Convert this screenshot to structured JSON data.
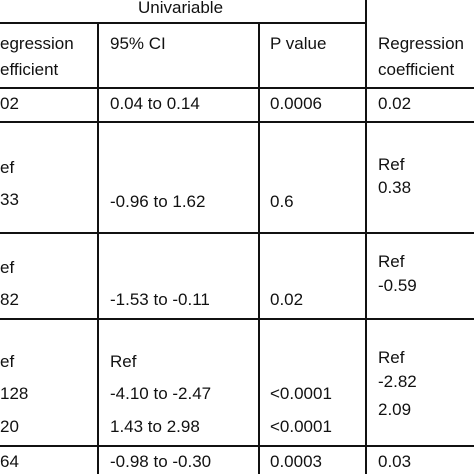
{
  "table": {
    "group_header": "Univariable",
    "header": [
      [
        "egression",
        "efficient"
      ],
      [
        "95% CI"
      ],
      [
        "P value"
      ],
      [
        "Regression",
        "coefficient"
      ]
    ],
    "rows": [
      [
        [
          "02"
        ],
        [
          "0.04 to 0.14"
        ],
        [
          "0.0006"
        ],
        [
          "0.02"
        ]
      ],
      [
        [
          "ef",
          "33"
        ],
        [
          "-0.96 to 1.62"
        ],
        [
          "0.6"
        ],
        [
          "Ref",
          "0.38"
        ]
      ],
      [
        [
          "ef",
          "82"
        ],
        [
          "-1.53 to -0.11"
        ],
        [
          "0.02"
        ],
        [
          "Ref",
          "-0.59"
        ]
      ],
      [
        [
          "ef",
          "128",
          "20"
        ],
        [
          "Ref",
          "-4.10 to -2.47",
          "1.43 to 2.98"
        ],
        [
          "<0.0001",
          "<0.0001"
        ],
        [
          "Ref",
          "-2.82",
          "2.09"
        ]
      ],
      [
        [
          "64"
        ],
        [
          "-0.98 to -0.30"
        ],
        [
          "0.0003"
        ],
        [
          "0.03"
        ]
      ]
    ]
  }
}
